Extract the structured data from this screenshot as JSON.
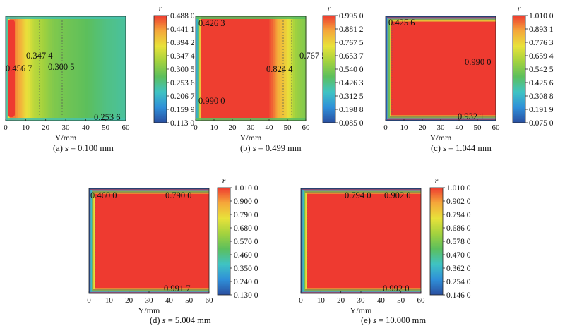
{
  "figure": {
    "panels": [
      {
        "caption_prefix": "(a) ",
        "caption_var": "s",
        "caption_rest": " = 0.100 mm"
      },
      {
        "caption_prefix": "(b) ",
        "caption_var": "s",
        "caption_rest": " = 0.499 mm"
      },
      {
        "caption_prefix": "(c) ",
        "caption_var": "s",
        "caption_rest": " = 1.044 mm"
      },
      {
        "caption_prefix": "(d) ",
        "caption_var": "s",
        "caption_rest": " = 5.004 mm"
      },
      {
        "caption_prefix": "(e) ",
        "caption_var": "s",
        "caption_rest": " = 10.000 mm"
      }
    ]
  },
  "colors": {
    "scale": [
      "#2a4fa0",
      "#2f8fd8",
      "#3fc3c3",
      "#5cbf5c",
      "#a3d23e",
      "#e8e23a",
      "#f5a73a",
      "#ee3a30"
    ],
    "field_red": "#ee3a30",
    "axis": "#222222"
  },
  "chart_data": [
    {
      "type": "heatmap",
      "title": "(a) s = 0.100 mm",
      "xlabel": "Y/mm",
      "xlim": [
        0,
        60
      ],
      "xticks": [
        "0",
        "10",
        "20",
        "30",
        "40",
        "50",
        "60"
      ],
      "colorbar_label": "r",
      "colorbar_ticks": [
        "0.488 0",
        "0.441 1",
        "0.394 2",
        "0.347 4",
        "0.300 5",
        "0.253 6",
        "0.206 7",
        "0.159 9",
        "0.113 0"
      ],
      "colorbar_range": [
        0.113,
        0.488
      ],
      "profile": {
        "y": [
          0,
          2,
          4,
          7,
          10,
          14,
          18,
          24,
          30,
          40,
          50,
          60
        ],
        "r": [
          0.16,
          0.46,
          0.4567,
          0.43,
          0.39,
          0.3474,
          0.3305,
          0.3005,
          0.29,
          0.275,
          0.2536,
          0.24
        ]
      },
      "annotations": [
        {
          "text": "0.347 4",
          "y": 14
        },
        {
          "text": "0.456 7",
          "y": 5
        },
        {
          "text": "0.300 5",
          "y": 24
        },
        {
          "text": "0.253 6",
          "y": 52
        }
      ]
    },
    {
      "type": "heatmap",
      "title": "(b) s = 0.499 mm",
      "xlabel": "Y/mm",
      "xlim": [
        0,
        60
      ],
      "xticks": [
        "0",
        "10",
        "20",
        "30",
        "40",
        "50",
        "60"
      ],
      "colorbar_label": "r",
      "colorbar_ticks": [
        "0.995 0",
        "0.881 2",
        "0.767 5",
        "0.653 7",
        "0.540 0",
        "0.426 3",
        "0.312 5",
        "0.198 8",
        "0.085 0"
      ],
      "colorbar_range": [
        0.085,
        0.995
      ],
      "profile": {
        "y": [
          0,
          1.5,
          3,
          40,
          46,
          50,
          54,
          60
        ],
        "r": [
          0.2,
          0.4263,
          0.99,
          0.99,
          0.8244,
          0.7675,
          0.6,
          0.54
        ]
      },
      "annotations": [
        {
          "text": "0.426 3",
          "y": 2
        },
        {
          "text": "0.767 5",
          "y": 50
        },
        {
          "text": "0.824 4",
          "y": 46
        },
        {
          "text": "0.990 0",
          "y": 2
        }
      ]
    },
    {
      "type": "heatmap",
      "title": "(c) s = 1.044 mm",
      "xlabel": "Y/mm",
      "xlim": [
        0,
        60
      ],
      "xticks": [
        "0",
        "10",
        "20",
        "30",
        "40",
        "50",
        "60"
      ],
      "colorbar_label": "r",
      "colorbar_ticks": [
        "1.010 0",
        "0.893 1",
        "0.776 3",
        "0.659 4",
        "0.542 5",
        "0.425 6",
        "0.308 8",
        "0.191 9",
        "0.075 0"
      ],
      "colorbar_range": [
        0.075,
        1.01
      ],
      "annotations": [
        {
          "text": "0.425 6",
          "y": 2
        },
        {
          "text": "0.990 0",
          "y": 50
        },
        {
          "text": "0.932 1",
          "y": 58
        }
      ]
    },
    {
      "type": "heatmap",
      "title": "(d) s = 5.004 mm",
      "xlabel": "Y/mm",
      "xlim": [
        0,
        60
      ],
      "xticks": [
        "0",
        "10",
        "20",
        "30",
        "40",
        "50",
        "60"
      ],
      "colorbar_label": "r",
      "colorbar_ticks": [
        "1.010 0",
        "0.900 0",
        "0.790 0",
        "0.680 0",
        "0.570 0",
        "0.460 0",
        "0.350 0",
        "0.240 0",
        "0.130 0"
      ],
      "colorbar_range": [
        0.13,
        1.01
      ],
      "annotations": [
        {
          "text": "0.460 0",
          "y": 2
        },
        {
          "text": "0.790 0",
          "y": 42
        },
        {
          "text": "0.991 7",
          "y": 55
        }
      ]
    },
    {
      "type": "heatmap",
      "title": "(e) s = 10.000 mm",
      "xlabel": "Y/mm",
      "xlim": [
        0,
        60
      ],
      "xticks": [
        "0",
        "10",
        "20",
        "30",
        "40",
        "50",
        "60"
      ],
      "colorbar_label": "r",
      "colorbar_ticks": [
        "1.010 0",
        "0.902 0",
        "0.794 0",
        "0.686 0",
        "0.578 0",
        "0.470 0",
        "0.362 0",
        "0.254 0",
        "0.146 0"
      ],
      "colorbar_range": [
        0.146,
        1.01
      ],
      "annotations": [
        {
          "text": "0.794 0",
          "y": 30
        },
        {
          "text": "0.902 0",
          "y": 50
        },
        {
          "text": "0.992 0",
          "y": 50
        }
      ]
    }
  ]
}
